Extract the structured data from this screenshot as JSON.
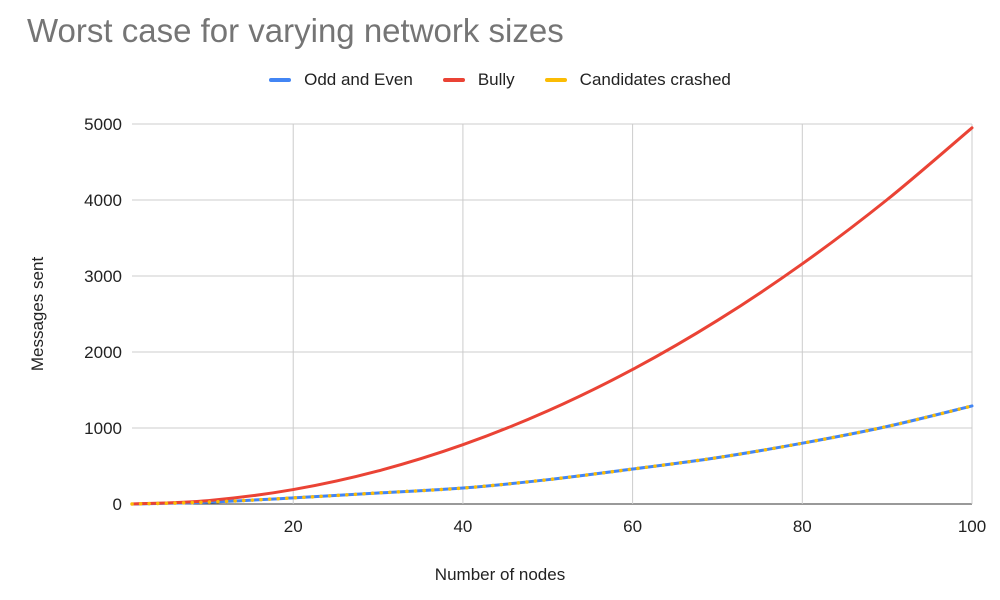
{
  "chart_data": {
    "type": "line",
    "title": "Worst case for varying network sizes",
    "xlabel": "Number of nodes",
    "ylabel": "Messages sent",
    "xlim": [
      1,
      100
    ],
    "ylim": [
      0,
      5000
    ],
    "xticks": [
      20,
      40,
      60,
      80,
      100
    ],
    "yticks": [
      0,
      1000,
      2000,
      3000,
      4000,
      5000
    ],
    "grid": true,
    "legend_position": "top",
    "series": [
      {
        "name": "Odd and Even",
        "color": "#4285f4",
        "style": "solid",
        "x": [
          1,
          10,
          20,
          30,
          40,
          50,
          60,
          70,
          80,
          90,
          100
        ],
        "y": [
          0,
          25,
          80,
          145,
          210,
          320,
          460,
          610,
          800,
          1020,
          1290
        ]
      },
      {
        "name": "Bully",
        "color": "#ea4335",
        "style": "solid",
        "x": [
          1,
          10,
          20,
          30,
          40,
          50,
          60,
          70,
          80,
          90,
          100
        ],
        "y": [
          0,
          45,
          190,
          435,
          780,
          1225,
          1770,
          2415,
          3160,
          4005,
          4950
        ]
      },
      {
        "name": "Candidates crashed",
        "color": "#fbbc04",
        "style": "dotted",
        "x": [
          1,
          10,
          20,
          30,
          40,
          50,
          60,
          70,
          80,
          90,
          100
        ],
        "y": [
          0,
          25,
          80,
          145,
          210,
          320,
          460,
          610,
          800,
          1020,
          1290
        ]
      }
    ]
  }
}
